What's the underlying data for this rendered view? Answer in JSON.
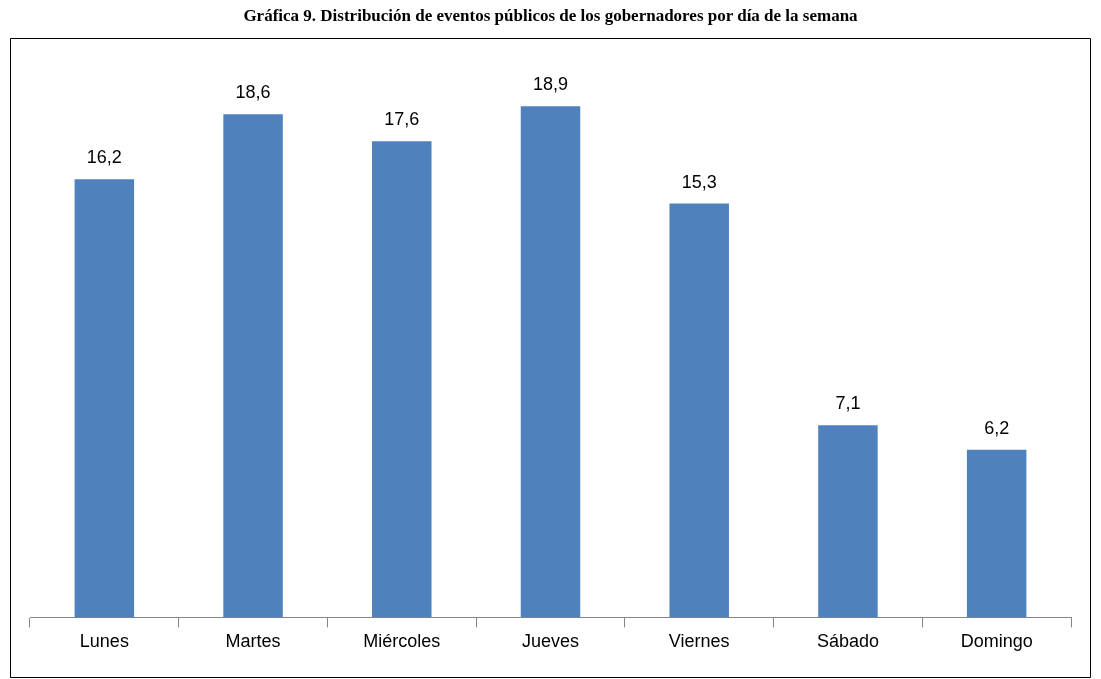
{
  "chart_data": {
    "type": "bar",
    "title": "Gráfica 9. Distribución de eventos públicos de los gobernadores por día de la semana",
    "categories": [
      "Lunes",
      "Martes",
      "Miércoles",
      "Jueves",
      "Viernes",
      "Sábado",
      "Domingo"
    ],
    "values": [
      16.2,
      18.6,
      17.6,
      18.9,
      15.3,
      7.1,
      6.2
    ],
    "value_labels": [
      "16,2",
      "18,6",
      "17,6",
      "18,9",
      "15,3",
      "7,1",
      "6,2"
    ],
    "color": "#4f81bd",
    "grid": false,
    "legend": false
  }
}
